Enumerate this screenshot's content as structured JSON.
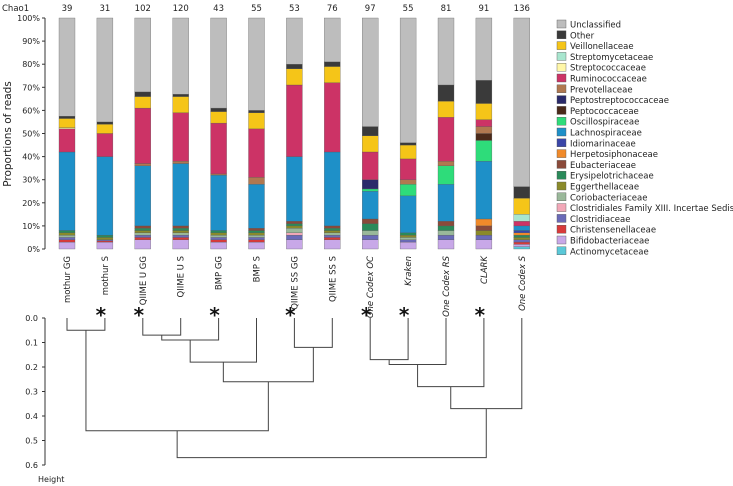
{
  "chart_data": {
    "type": "bar",
    "stacked": true,
    "ylabel": "Proportions of reads",
    "ylim": [
      0,
      100
    ],
    "yticks": [
      "0%",
      "10%",
      "20%",
      "30%",
      "40%",
      "50%",
      "60%",
      "70%",
      "80%",
      "90%",
      "100%"
    ],
    "chao_label": "Chao1",
    "categories": [
      "mothur GG",
      "mothur S",
      "QIIME U GG",
      "QIIME U S",
      "BMP GG",
      "BMP S",
      "QIIME SS GG",
      "QIIME SS S",
      "One Codex OC",
      "Kraken",
      "One Codex RS",
      "CLARK",
      "One Codex S"
    ],
    "italic": [
      false,
      false,
      false,
      false,
      false,
      false,
      false,
      false,
      true,
      true,
      true,
      true,
      true
    ],
    "starred": [
      false,
      true,
      true,
      false,
      true,
      false,
      true,
      false,
      true,
      true,
      false,
      true,
      false
    ],
    "chao1": [
      "39",
      "31",
      "102",
      "120",
      "43",
      "55",
      "53",
      "76",
      "97",
      "55",
      "81",
      "91",
      "136"
    ],
    "legend": [
      {
        "name": "Unclassified",
        "color": "#bdbdbd"
      },
      {
        "name": "Other",
        "color": "#3a3a3a"
      },
      {
        "name": "Veillonellaceae",
        "color": "#f5c518"
      },
      {
        "name": "Streptomycetaceae",
        "color": "#a8e6cf"
      },
      {
        "name": "Streptococcaceae",
        "color": "#fff7a8"
      },
      {
        "name": "Ruminococcaceae",
        "color": "#cc3366"
      },
      {
        "name": "Prevotellaceae",
        "color": "#b07850"
      },
      {
        "name": "Peptostreptococcaceae",
        "color": "#2a2a6a"
      },
      {
        "name": "Peptococcaceae",
        "color": "#4a2a1a"
      },
      {
        "name": "Oscillospiraceae",
        "color": "#2edc7a"
      },
      {
        "name": "Lachnospiraceae",
        "color": "#1e90c8"
      },
      {
        "name": "Idiomarinaceae",
        "color": "#3a46a8"
      },
      {
        "name": "Herpetosiphonaceae",
        "color": "#f08a2a"
      },
      {
        "name": "Eubacteriaceae",
        "color": "#8a4a3a"
      },
      {
        "name": "Erysipelotrichaceae",
        "color": "#2a8a5a"
      },
      {
        "name": "Eggerthellaceae",
        "color": "#8a8a2a"
      },
      {
        "name": "Coriobacteriaceae",
        "color": "#9ab89a"
      },
      {
        "name": "Clostridiales Family XIII. Incertae Sedis",
        "color": "#f2a8b8"
      },
      {
        "name": "Clostridiaceae",
        "color": "#6a6ab8"
      },
      {
        "name": "Christensenellaceae",
        "color": "#d83a3a"
      },
      {
        "name": "Bifidobacteriaceae",
        "color": "#c8a8e8"
      },
      {
        "name": "Actinomycetaceae",
        "color": "#5ac8d8"
      }
    ],
    "stack_order": [
      "Actinomycetaceae",
      "Bifidobacteriaceae",
      "Christensenellaceae",
      "Clostridiaceae",
      "Clostridiales Family XIII. Incertae Sedis",
      "Coriobacteriaceae",
      "Eggerthellaceae",
      "Erysipelotrichaceae",
      "Eubacteriaceae",
      "Herpetosiphonaceae",
      "Idiomarinaceae",
      "Lachnospiraceae",
      "Oscillospiraceae",
      "Peptococcaceae",
      "Peptostreptococcaceae",
      "Prevotellaceae",
      "Ruminococcaceae",
      "Streptococcaceae",
      "Streptomycetaceae",
      "Veillonellaceae",
      "Other",
      "Unclassified"
    ],
    "series_values": {
      "mothur GG": {
        "Bifidobacteriaceae": 3,
        "Christensenellaceae": 1,
        "Clostridiaceae": 1,
        "Coriobacteriaceae": 1,
        "Eggerthellaceae": 1,
        "Erysipelotrichaceae": 1,
        "Lachnospiraceae": 34,
        "Ruminococcaceae": 10,
        "Streptococcaceae": 0.5,
        "Veillonellaceae": 4,
        "Other": 1,
        "Unclassified": 42.5
      },
      "mothur S": {
        "Bifidobacteriaceae": 3,
        "Christensenellaceae": 0.5,
        "Clostridiaceae": 0.5,
        "Eggerthellaceae": 1,
        "Erysipelotrichaceae": 1,
        "Lachnospiraceae": 34,
        "Ruminococcaceae": 10,
        "Veillonellaceae": 4,
        "Other": 1,
        "Unclassified": 45
      },
      "QIIME U GG": {
        "Bifidobacteriaceae": 4,
        "Christensenellaceae": 1,
        "Clostridiaceae": 1,
        "Coriobacteriaceae": 1,
        "Eggerthellaceae": 1,
        "Erysipelotrichaceae": 1,
        "Eubacteriaceae": 1,
        "Lachnospiraceae": 26,
        "Prevotellaceae": 1,
        "Ruminococcaceae": 24,
        "Veillonellaceae": 5,
        "Other": 2,
        "Unclassified": 32
      },
      "QIIME U S": {
        "Bifidobacteriaceae": 4,
        "Christensenellaceae": 1,
        "Clostridiaceae": 1,
        "Coriobacteriaceae": 1,
        "Eggerthellaceae": 1,
        "Erysipelotrichaceae": 1,
        "Eubacteriaceae": 1,
        "Lachnospiraceae": 27,
        "Prevotellaceae": 1,
        "Ruminococcaceae": 21,
        "Veillonellaceae": 7,
        "Other": 1,
        "Unclassified": 33
      },
      "BMP GG": {
        "Bifidobacteriaceae": 3,
        "Christensenellaceae": 1,
        "Clostridiaceae": 1,
        "Coriobacteriaceae": 1,
        "Eggerthellaceae": 1,
        "Erysipelotrichaceae": 1,
        "Lachnospiraceae": 24,
        "Prevotellaceae": 0.5,
        "Ruminococcaceae": 22,
        "Veillonellaceae": 5,
        "Other": 1.5,
        "Unclassified": 39
      },
      "BMP S": {
        "Bifidobacteriaceae": 3,
        "Christensenellaceae": 1,
        "Clostridiaceae": 1,
        "Coriobacteriaceae": 1,
        "Eggerthellaceae": 1,
        "Erysipelotrichaceae": 1,
        "Eubacteriaceae": 1,
        "Lachnospiraceae": 19,
        "Prevotellaceae": 3,
        "Ruminococcaceae": 21,
        "Veillonellaceae": 7,
        "Other": 1,
        "Unclassified": 40
      },
      "QIIME SS GG": {
        "Bifidobacteriaceae": 4,
        "Clostridiaceae": 2,
        "Clostridiales Family XIII. Incertae Sedis": 1,
        "Coriobacteriaceae": 2,
        "Eggerthellaceae": 1,
        "Erysipelotrichaceae": 1,
        "Eubacteriaceae": 1,
        "Lachnospiraceae": 28,
        "Ruminococcaceae": 31,
        "Veillonellaceae": 7,
        "Other": 2,
        "Unclassified": 20
      },
      "QIIME SS S": {
        "Bifidobacteriaceae": 4,
        "Christensenellaceae": 1,
        "Clostridiaceae": 1,
        "Coriobacteriaceae": 1,
        "Eggerthellaceae": 1,
        "Erysipelotrichaceae": 1,
        "Eubacteriaceae": 1,
        "Lachnospiraceae": 32,
        "Ruminococcaceae": 30,
        "Veillonellaceae": 7,
        "Other": 2,
        "Unclassified": 19
      },
      "One Codex OC": {
        "Bifidobacteriaceae": 4,
        "Clostridiaceae": 2,
        "Coriobacteriaceae": 2,
        "Erysipelotrichaceae": 3,
        "Eubacteriaceae": 2,
        "Lachnospiraceae": 12,
        "Oscillospiraceae": 1,
        "Peptostreptococcaceae": 4,
        "Ruminococcaceae": 12,
        "Veillonellaceae": 7,
        "Other": 4,
        "Unclassified": 47
      },
      "Kraken": {
        "Bifidobacteriaceae": 3,
        "Clostridiaceae": 1,
        "Coriobacteriaceae": 1,
        "Eggerthellaceae": 1,
        "Erysipelotrichaceae": 1,
        "Lachnospiraceae": 16,
        "Oscillospiraceae": 5,
        "Prevotellaceae": 2,
        "Ruminococcaceae": 9,
        "Veillonellaceae": 6,
        "Other": 1,
        "Unclassified": 54
      },
      "One Codex RS": {
        "Bifidobacteriaceae": 4,
        "Clostridiaceae": 2,
        "Coriobacteriaceae": 2,
        "Erysipelotrichaceae": 2,
        "Eubacteriaceae": 2,
        "Lachnospiraceae": 16,
        "Oscillospiraceae": 8,
        "Prevotellaceae": 2,
        "Ruminococcaceae": 19,
        "Veillonellaceae": 7,
        "Other": 7,
        "Unclassified": 29
      },
      "CLARK": {
        "Bifidobacteriaceae": 4,
        "Clostridiaceae": 2,
        "Eggerthellaceae": 2,
        "Eubacteriaceae": 2,
        "Herpetosiphonaceae": 3,
        "Lachnospiraceae": 25,
        "Oscillospiraceae": 9,
        "Peptococcaceae": 3,
        "Prevotellaceae": 3,
        "Ruminococcaceae": 3,
        "Veillonellaceae": 7,
        "Other": 10,
        "Unclassified": 27
      },
      "One Codex S": {
        "Actinomycetaceae": 1,
        "Bifidobacteriaceae": 1,
        "Christensenellaceae": 1,
        "Clostridiaceae": 1,
        "Eggerthellaceae": 1,
        "Erysipelotrichaceae": 1,
        "Lachnospiraceae": 2,
        "Idiomarinaceae": 1,
        "Herpetosiphonaceae": 1,
        "Ruminococcaceae": 2,
        "Streptomycetaceae": 3,
        "Veillonellaceae": 7,
        "Other": 5,
        "Unclassified": 73
      }
    },
    "dendrogram": {
      "ylabel": "Height",
      "yticks": [
        "0.0",
        "0.1",
        "0.2",
        "0.3",
        "0.4",
        "0.5",
        "0.6"
      ],
      "ylim": [
        0,
        0.6
      ],
      "merges": [
        {
          "left": "mothur GG",
          "right": "mothur S",
          "height": 0.05
        },
        {
          "left": "QIIME U GG",
          "right": "QIIME U S",
          "height": 0.07
        },
        {
          "left": "A2",
          "right": "BMP GG",
          "height": 0.09
        },
        {
          "left": "A3",
          "right": "BMP S",
          "height": 0.18
        },
        {
          "left": "QIIME SS GG",
          "right": "QIIME SS S",
          "height": 0.12
        },
        {
          "left": "A4",
          "right": "A5",
          "height": 0.26
        },
        {
          "left": "One Codex OC",
          "right": "Kraken",
          "height": 0.17
        },
        {
          "left": "A7",
          "right": "One Codex RS",
          "height": 0.19
        },
        {
          "left": "A8",
          "right": "CLARK",
          "height": 0.28
        },
        {
          "left": "A9",
          "right": "One Codex S",
          "height": 0.37
        },
        {
          "left": "A1",
          "right": "A6",
          "height": 0.46
        },
        {
          "left": "A11",
          "right": "A10",
          "height": 0.57
        }
      ]
    }
  }
}
